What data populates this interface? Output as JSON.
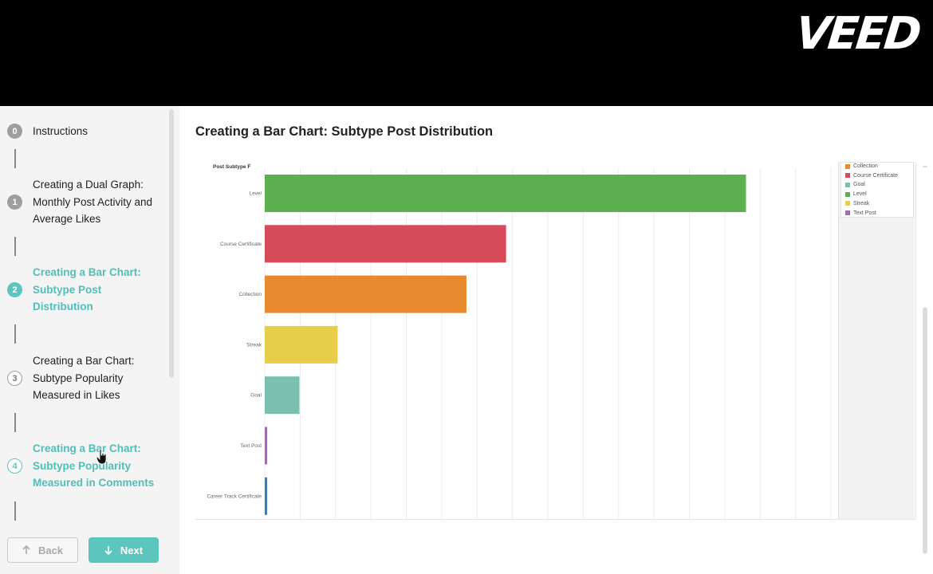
{
  "brand": {
    "logo_text": "VEED"
  },
  "sidebar": {
    "steps": [
      {
        "num": "0",
        "label": "Instructions",
        "state": "done"
      },
      {
        "num": "1",
        "label": "Creating a Dual Graph: Monthly Post Activity and Average Likes",
        "state": "done"
      },
      {
        "num": "2",
        "label": "Creating a Bar Chart: Subtype Post Distribution",
        "state": "active"
      },
      {
        "num": "3",
        "label": "Creating a Bar Chart: Subtype Popularity Measured in Likes",
        "state": "upcoming"
      },
      {
        "num": "4",
        "label": "Creating a Bar Chart: Subtype Popularity Measured in Comments",
        "state": "hover"
      }
    ],
    "back_label": "Back",
    "next_label": "Next"
  },
  "main": {
    "title": "Creating a Bar Chart: Subtype Post Distribution"
  },
  "chart_data": {
    "type": "bar",
    "orientation": "horizontal",
    "title": "",
    "ylabel": "Post Subtype F̅",
    "xlabel": "",
    "categories": [
      "Level",
      "Course Certificate",
      "Collection",
      "Streak",
      "Goal",
      "Text Post",
      "Career Track Certificate"
    ],
    "values": [
      680,
      341,
      285,
      103,
      49,
      3,
      3
    ],
    "colors": [
      "#5db04f",
      "#d64a5a",
      "#e8892d",
      "#e6ce4a",
      "#7bbfb0",
      "#9e6fae",
      "#4a79a5"
    ],
    "xlim": [
      0,
      800
    ],
    "grid": true,
    "legend_position": "right",
    "legend": [
      {
        "label": "Collection",
        "color": "#e8892d"
      },
      {
        "label": "Course Certificate",
        "color": "#d64a5a"
      },
      {
        "label": "Goal",
        "color": "#7bbfb0"
      },
      {
        "label": "Level",
        "color": "#5db04f"
      },
      {
        "label": "Streak",
        "color": "#e6ce4a"
      },
      {
        "label": "Text Post",
        "color": "#9e6fae"
      }
    ]
  }
}
